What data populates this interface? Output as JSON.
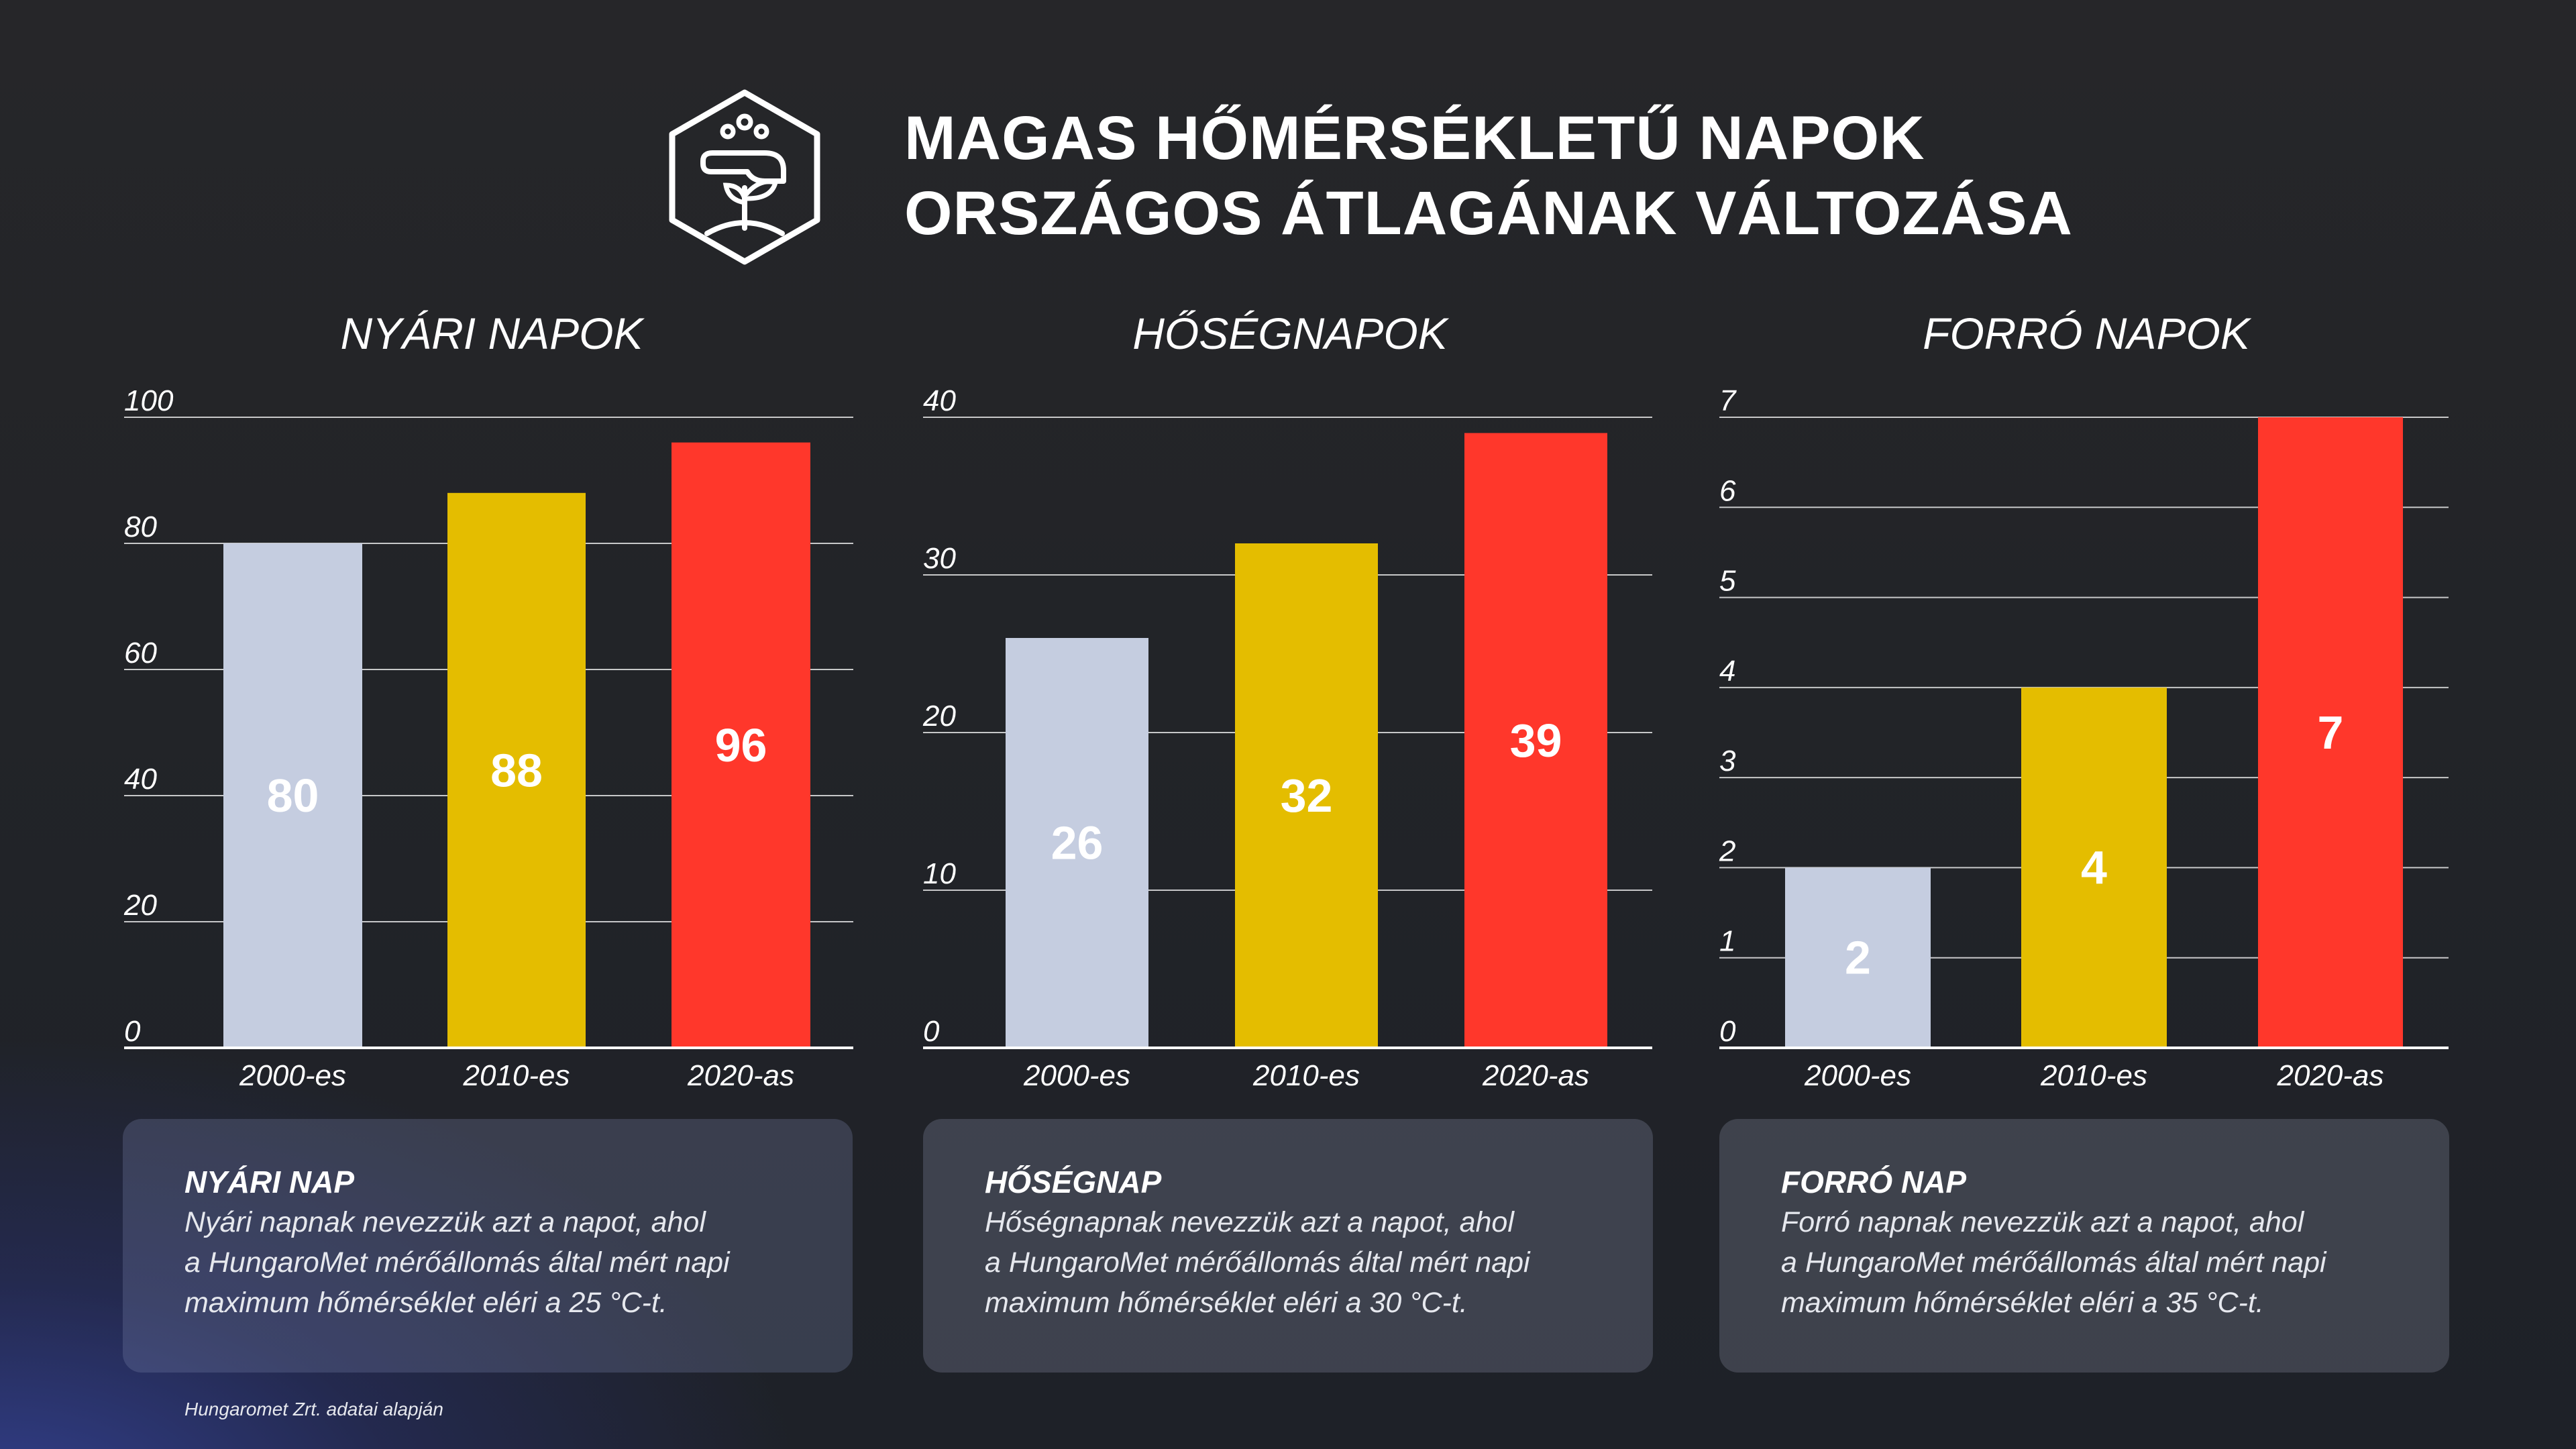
{
  "title_line1": "MAGAS HŐMÉRSÉKLETŰ NAPOK",
  "title_line2": "ORSZÁGOS ÁTLAGÁNAK VÁLTOZÁSA",
  "logo_icon": "hand-with-sprout-icon",
  "colors": {
    "bar_2000": "#c5cde0",
    "bar_2010": "#e4bd00",
    "bar_2020": "#ff372b",
    "card_bg": "#3a3e4c"
  },
  "chart_data": [
    {
      "type": "bar",
      "title": "NYÁRI NAPOK",
      "categories": [
        "2000-es",
        "2010-es",
        "2020-as"
      ],
      "values": [
        80,
        88,
        96
      ],
      "ylim": [
        0,
        100
      ],
      "yticks": [
        0,
        20,
        40,
        60,
        80,
        100
      ],
      "grid": true
    },
    {
      "type": "bar",
      "title": "HŐSÉGNAPOK",
      "categories": [
        "2000-es",
        "2010-es",
        "2020-as"
      ],
      "values": [
        26,
        32,
        39
      ],
      "ylim": [
        0,
        40
      ],
      "yticks": [
        0,
        10,
        20,
        30,
        40
      ],
      "grid": true
    },
    {
      "type": "bar",
      "title": "FORRÓ NAPOK",
      "categories": [
        "2000-es",
        "2010-es",
        "2020-as"
      ],
      "values": [
        2,
        4,
        7
      ],
      "ylim": [
        0,
        7
      ],
      "yticks": [
        0,
        1,
        2,
        3,
        4,
        5,
        6,
        7
      ],
      "grid": true
    }
  ],
  "cards": [
    {
      "title": "NYÁRI NAP",
      "text": "Nyári napnak nevezzük azt a napot, ahol\na HungaroMet mérőállomás által mért napi\nmaximum hőmérséklet eléri a 25 °C-t."
    },
    {
      "title": "HŐSÉGNAP",
      "text": "Hőségnapnak nevezzük azt a napot, ahol\na HungaroMet mérőállomás által mért napi\nmaximum hőmérséklet eléri a 30 °C-t."
    },
    {
      "title": "FORRÓ NAP",
      "text": "Forró napnak nevezzük azt a napot, ahol\na HungaroMet mérőállomás által mért napi\nmaximum hőmérséklet eléri a 35 °C-t."
    }
  ],
  "source": "Hungaromet Zrt. adatai alapján"
}
